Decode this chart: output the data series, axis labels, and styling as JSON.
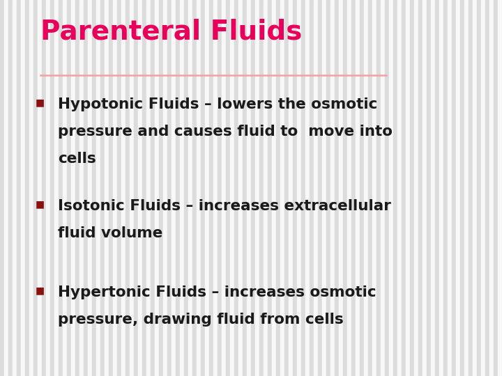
{
  "title": "Parenteral Fluids",
  "title_color": "#E8005A",
  "title_fontsize": 28,
  "separator_color": "#F4A0A0",
  "bullet_color": "#8B1010",
  "bullet_size": 10,
  "text_color": "#1a1a1a",
  "text_fontsize": 15.5,
  "background_color": "#F0F0F0",
  "stripe_color": "#DCDCDC",
  "stripe_bg_color": "#F8F8F8",
  "bullets": [
    {
      "lines": [
        "Hypotonic Fluids – lowers the osmotic",
        "pressure and causes fluid to  move into",
        "cells"
      ]
    },
    {
      "lines": [
        "Isotonic Fluids – increases extracellular",
        "fluid volume"
      ]
    },
    {
      "lines": [
        "Hypertonic Fluids – increases osmotic",
        "pressure, drawing fluid from cells"
      ]
    }
  ]
}
